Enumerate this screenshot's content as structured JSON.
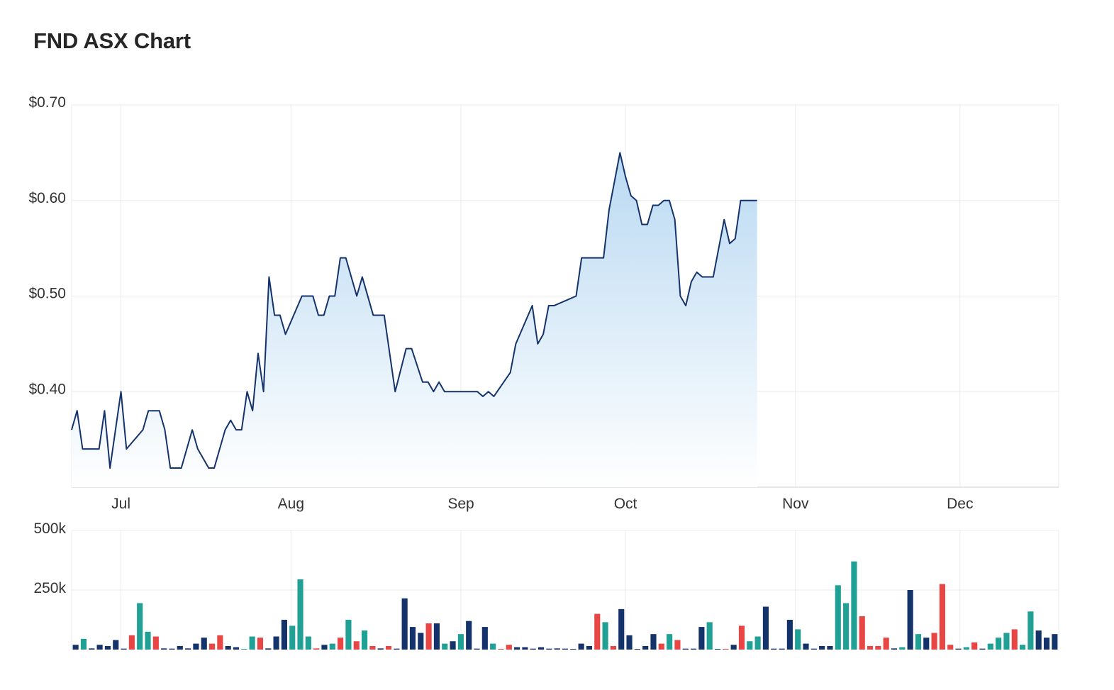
{
  "title": "FND ASX Chart",
  "colors": {
    "line": "#15336b",
    "area_top": "#b9d9f2",
    "area_bottom": "#ffffff",
    "vol_neutral": "#15336b",
    "vol_up": "#21a095",
    "vol_down": "#e84545",
    "grid": "#ebebeb"
  },
  "chart_data": [
    {
      "type": "area",
      "title": "FND ASX Chart",
      "ylim": [
        0.3,
        0.7
      ],
      "y_ticks": [
        {
          "value": 0.7,
          "label": "$0.70"
        },
        {
          "value": 0.6,
          "label": "$0.60"
        },
        {
          "value": 0.5,
          "label": "$0.50"
        },
        {
          "value": 0.4,
          "label": "$0.40"
        }
      ],
      "x_range": [
        "2023-06-22",
        "2023-12-19"
      ],
      "x_ticks": [
        {
          "date": "2023-07-01",
          "label": "Jul"
        },
        {
          "date": "2023-08-01",
          "label": "Aug"
        },
        {
          "date": "2023-09-01",
          "label": "Sep"
        },
        {
          "date": "2023-10-01",
          "label": "Oct"
        },
        {
          "date": "2023-11-01",
          "label": "Nov"
        },
        {
          "date": "2023-12-01",
          "label": "Dec"
        }
      ],
      "grid": true,
      "series": [
        {
          "points": [
            [
              "2023-06-22",
              0.36
            ],
            [
              "2023-06-23",
              0.38
            ],
            [
              "2023-06-24",
              0.34
            ],
            [
              "2023-06-27",
              0.34
            ],
            [
              "2023-06-28",
              0.38
            ],
            [
              "2023-06-29",
              0.32
            ],
            [
              "2023-07-01",
              0.4
            ],
            [
              "2023-07-02",
              0.34
            ],
            [
              "2023-07-05",
              0.36
            ],
            [
              "2023-07-06",
              0.38
            ],
            [
              "2023-07-08",
              0.38
            ],
            [
              "2023-07-09",
              0.36
            ],
            [
              "2023-07-10",
              0.32
            ],
            [
              "2023-07-12",
              0.32
            ],
            [
              "2023-07-14",
              0.36
            ],
            [
              "2023-07-15",
              0.34
            ],
            [
              "2023-07-17",
              0.32
            ],
            [
              "2023-07-18",
              0.32
            ],
            [
              "2023-07-19",
              0.34
            ],
            [
              "2023-07-20",
              0.36
            ],
            [
              "2023-07-21",
              0.37
            ],
            [
              "2023-07-22",
              0.36
            ],
            [
              "2023-07-23",
              0.36
            ],
            [
              "2023-07-24",
              0.4
            ],
            [
              "2023-07-25",
              0.38
            ],
            [
              "2023-07-26",
              0.44
            ],
            [
              "2023-07-27",
              0.4
            ],
            [
              "2023-07-28",
              0.52
            ],
            [
              "2023-07-29",
              0.48
            ],
            [
              "2023-07-30",
              0.48
            ],
            [
              "2023-07-31",
              0.46
            ],
            [
              "2023-08-03",
              0.5
            ],
            [
              "2023-08-05",
              0.5
            ],
            [
              "2023-08-06",
              0.48
            ],
            [
              "2023-08-07",
              0.48
            ],
            [
              "2023-08-08",
              0.5
            ],
            [
              "2023-08-09",
              0.5
            ],
            [
              "2023-08-10",
              0.54
            ],
            [
              "2023-08-11",
              0.54
            ],
            [
              "2023-08-13",
              0.5
            ],
            [
              "2023-08-14",
              0.52
            ],
            [
              "2023-08-16",
              0.48
            ],
            [
              "2023-08-18",
              0.48
            ],
            [
              "2023-08-20",
              0.4
            ],
            [
              "2023-08-22",
              0.445
            ],
            [
              "2023-08-23",
              0.445
            ],
            [
              "2023-08-25",
              0.41
            ],
            [
              "2023-08-26",
              0.41
            ],
            [
              "2023-08-27",
              0.4
            ],
            [
              "2023-08-28",
              0.41
            ],
            [
              "2023-08-29",
              0.4
            ],
            [
              "2023-09-04",
              0.4
            ],
            [
              "2023-09-05",
              0.395
            ],
            [
              "2023-09-06",
              0.4
            ],
            [
              "2023-09-07",
              0.395
            ],
            [
              "2023-09-10",
              0.42
            ],
            [
              "2023-09-11",
              0.45
            ],
            [
              "2023-09-14",
              0.49
            ],
            [
              "2023-09-15",
              0.45
            ],
            [
              "2023-09-16",
              0.46
            ],
            [
              "2023-09-17",
              0.49
            ],
            [
              "2023-09-18",
              0.49
            ],
            [
              "2023-09-22",
              0.5
            ],
            [
              "2023-09-23",
              0.54
            ],
            [
              "2023-09-27",
              0.54
            ],
            [
              "2023-09-28",
              0.59
            ],
            [
              "2023-09-29",
              0.62
            ],
            [
              "2023-09-30",
              0.65
            ],
            [
              "2023-10-01",
              0.625
            ],
            [
              "2023-10-02",
              0.605
            ],
            [
              "2023-10-03",
              0.6
            ],
            [
              "2023-10-04",
              0.575
            ],
            [
              "2023-10-05",
              0.575
            ],
            [
              "2023-10-06",
              0.595
            ],
            [
              "2023-10-07",
              0.595
            ],
            [
              "2023-10-08",
              0.6
            ],
            [
              "2023-10-09",
              0.6
            ],
            [
              "2023-10-10",
              0.58
            ],
            [
              "2023-10-11",
              0.5
            ],
            [
              "2023-10-12",
              0.49
            ],
            [
              "2023-10-13",
              0.515
            ],
            [
              "2023-10-14",
              0.525
            ],
            [
              "2023-10-15",
              0.52
            ],
            [
              "2023-10-17",
              0.52
            ],
            [
              "2023-10-18",
              0.55
            ],
            [
              "2023-10-19",
              0.58
            ],
            [
              "2023-10-20",
              0.555
            ],
            [
              "2023-10-21",
              0.56
            ],
            [
              "2023-10-22",
              0.6
            ],
            [
              "2023-10-25",
              0.6
            ]
          ]
        }
      ]
    },
    {
      "type": "bar",
      "ylim": [
        0,
        500000
      ],
      "y_ticks": [
        {
          "value": 500000,
          "label": "500k"
        },
        {
          "value": 250000,
          "label": "250k"
        }
      ],
      "categories": [
        "Jul",
        "Aug",
        "Sep",
        "Oct",
        "Nov",
        "Dec"
      ],
      "series": [
        {
          "bars": [
            [
              0,
              20000,
              "n"
            ],
            [
              1,
              45000,
              "u"
            ],
            [
              2,
              5000,
              "n"
            ],
            [
              3,
              20000,
              "n"
            ],
            [
              4,
              15000,
              "n"
            ],
            [
              5,
              40000,
              "n"
            ],
            [
              6,
              4000,
              "n"
            ],
            [
              7,
              60000,
              "d"
            ],
            [
              8,
              195000,
              "u"
            ],
            [
              9,
              75000,
              "u"
            ],
            [
              10,
              55000,
              "d"
            ],
            [
              11,
              5000,
              "n"
            ],
            [
              12,
              4000,
              "n"
            ],
            [
              13,
              15000,
              "n"
            ],
            [
              14,
              5000,
              "n"
            ],
            [
              15,
              25000,
              "n"
            ],
            [
              16,
              50000,
              "n"
            ],
            [
              17,
              25000,
              "d"
            ],
            [
              18,
              60000,
              "d"
            ],
            [
              19,
              15000,
              "n"
            ],
            [
              20,
              10000,
              "n"
            ],
            [
              21,
              3000,
              "u"
            ],
            [
              22,
              55000,
              "u"
            ],
            [
              23,
              50000,
              "d"
            ],
            [
              24,
              5000,
              "n"
            ],
            [
              25,
              55000,
              "n"
            ],
            [
              26,
              125000,
              "n"
            ],
            [
              27,
              100000,
              "u"
            ],
            [
              28,
              295000,
              "u"
            ],
            [
              29,
              55000,
              "u"
            ],
            [
              30,
              5000,
              "d"
            ],
            [
              31,
              20000,
              "n"
            ],
            [
              32,
              25000,
              "u"
            ],
            [
              33,
              50000,
              "d"
            ],
            [
              34,
              125000,
              "u"
            ],
            [
              35,
              35000,
              "d"
            ],
            [
              36,
              80000,
              "u"
            ],
            [
              37,
              15000,
              "d"
            ],
            [
              38,
              5000,
              "n"
            ],
            [
              39,
              15000,
              "d"
            ],
            [
              40,
              4000,
              "n"
            ],
            [
              41,
              215000,
              "n"
            ],
            [
              42,
              95000,
              "n"
            ],
            [
              43,
              70000,
              "n"
            ],
            [
              44,
              110000,
              "d"
            ],
            [
              45,
              110000,
              "n"
            ],
            [
              46,
              25000,
              "u"
            ],
            [
              47,
              35000,
              "n"
            ],
            [
              48,
              65000,
              "u"
            ],
            [
              49,
              120000,
              "n"
            ],
            [
              50,
              4000,
              "n"
            ],
            [
              51,
              95000,
              "n"
            ],
            [
              52,
              25000,
              "u"
            ],
            [
              53,
              3000,
              "d"
            ],
            [
              54,
              20000,
              "d"
            ],
            [
              55,
              10000,
              "n"
            ],
            [
              56,
              10000,
              "n"
            ],
            [
              57,
              4000,
              "n"
            ],
            [
              58,
              10000,
              "n"
            ],
            [
              59,
              4000,
              "n"
            ],
            [
              60,
              5000,
              "n"
            ],
            [
              61,
              4000,
              "n"
            ],
            [
              62,
              3000,
              "n"
            ],
            [
              63,
              25000,
              "n"
            ],
            [
              64,
              15000,
              "n"
            ],
            [
              65,
              150000,
              "d"
            ],
            [
              66,
              115000,
              "u"
            ],
            [
              67,
              15000,
              "d"
            ],
            [
              68,
              170000,
              "n"
            ],
            [
              69,
              60000,
              "n"
            ],
            [
              70,
              3000,
              "n"
            ],
            [
              71,
              15000,
              "n"
            ],
            [
              72,
              65000,
              "n"
            ],
            [
              73,
              25000,
              "d"
            ],
            [
              74,
              65000,
              "u"
            ],
            [
              75,
              40000,
              "d"
            ],
            [
              76,
              4000,
              "n"
            ],
            [
              77,
              4000,
              "n"
            ],
            [
              78,
              95000,
              "n"
            ],
            [
              79,
              115000,
              "u"
            ],
            [
              80,
              3000,
              "n"
            ],
            [
              81,
              3000,
              "d"
            ],
            [
              82,
              20000,
              "n"
            ],
            [
              83,
              100000,
              "d"
            ],
            [
              84,
              35000,
              "u"
            ],
            [
              85,
              55000,
              "u"
            ],
            [
              86,
              180000,
              "n"
            ],
            [
              87,
              4000,
              "n"
            ],
            [
              88,
              4000,
              "n"
            ],
            [
              89,
              125000,
              "n"
            ],
            [
              90,
              85000,
              "u"
            ],
            [
              91,
              25000,
              "n"
            ],
            [
              92,
              4000,
              "n"
            ],
            [
              93,
              15000,
              "n"
            ],
            [
              94,
              15000,
              "n"
            ],
            [
              95,
              270000,
              "u"
            ],
            [
              96,
              195000,
              "u"
            ],
            [
              97,
              370000,
              "u"
            ],
            [
              98,
              140000,
              "d"
            ],
            [
              99,
              15000,
              "d"
            ],
            [
              100,
              15000,
              "d"
            ],
            [
              101,
              50000,
              "d"
            ],
            [
              102,
              5000,
              "n"
            ],
            [
              103,
              10000,
              "u"
            ],
            [
              104,
              250000,
              "n"
            ],
            [
              105,
              65000,
              "u"
            ],
            [
              106,
              50000,
              "n"
            ],
            [
              107,
              70000,
              "d"
            ],
            [
              108,
              275000,
              "d"
            ],
            [
              109,
              20000,
              "d"
            ],
            [
              110,
              4000,
              "n"
            ],
            [
              111,
              10000,
              "u"
            ],
            [
              112,
              30000,
              "d"
            ],
            [
              113,
              4000,
              "n"
            ],
            [
              114,
              25000,
              "u"
            ],
            [
              115,
              50000,
              "u"
            ],
            [
              116,
              70000,
              "u"
            ],
            [
              117,
              85000,
              "d"
            ],
            [
              118,
              20000,
              "u"
            ],
            [
              119,
              160000,
              "u"
            ],
            [
              120,
              80000,
              "n"
            ],
            [
              121,
              50000,
              "n"
            ],
            [
              122,
              65000,
              "n"
            ]
          ]
        }
      ]
    }
  ]
}
